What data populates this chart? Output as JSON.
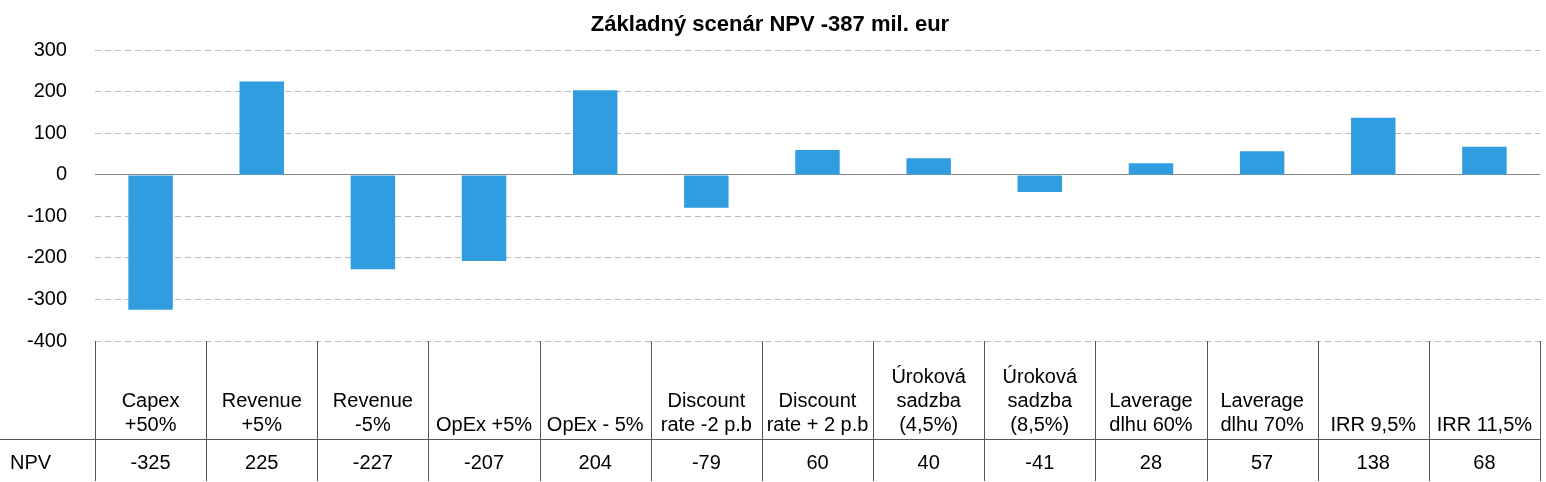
{
  "chart_data": {
    "type": "bar",
    "title": "Základný scenár NPV -387 mil. eur",
    "categories": [
      "Capex +50%",
      "Revenue +5%",
      "Revenue -5%",
      "OpEx +5%",
      "OpEx - 5%",
      "Discount rate -2 p.b",
      "Discount rate + 2 p.b",
      "Úroková sadzba (4,5%)",
      "Úroková sadzba (8,5%)",
      "Laverage dlhu 60%",
      "Laverage dlhu 70%",
      "IRR 9,5%",
      "IRR 11,5%"
    ],
    "series": [
      {
        "name": "NPV",
        "color": "#2f9de0",
        "values": [
          -325,
          225,
          -227,
          -207,
          204,
          -79,
          60,
          40,
          -41,
          28,
          57,
          138,
          68
        ]
      }
    ],
    "ylim": [
      -400,
      300
    ],
    "yticks": [
      -400,
      -300,
      -200,
      -100,
      0,
      100,
      200,
      300
    ],
    "grid": "y",
    "data_labels": true
  }
}
